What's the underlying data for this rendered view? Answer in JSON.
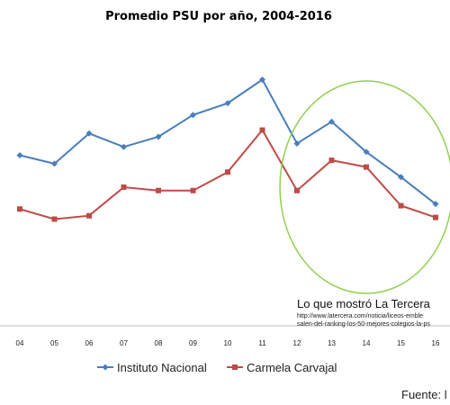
{
  "chart_data": {
    "type": "line",
    "title": "Promedio PSU por año, 2004-2016",
    "categories": [
      "04",
      "05",
      "06",
      "07",
      "08",
      "09",
      "10",
      "11",
      "12",
      "13",
      "14",
      "15",
      "16"
    ],
    "series": [
      {
        "name": "Instituto Nacional",
        "color": "#4a7ebb",
        "marker": "diamond",
        "values": [
          659,
          654,
          672,
          664,
          670,
          683,
          690,
          704,
          666,
          679,
          661,
          646,
          630
        ]
      },
      {
        "name": "Carmela Carvajal",
        "color": "#be4b48",
        "marker": "square",
        "values": [
          627,
          621,
          623,
          640,
          638,
          638,
          649,
          674,
          638,
          656,
          652,
          629,
          622
        ]
      }
    ],
    "ylim": [
      580,
      730
    ],
    "grid": false,
    "legend_position": "bottom"
  },
  "annotation": {
    "caption": "Lo que mostró La Tercera",
    "url_line1": "http://www.latercera.com/noticia/liceos-emble",
    "url_line2": "salen-del-ranking-los-50-mejores-colegios-la-ps",
    "circle_color": "#92d050"
  },
  "footer": {
    "source": "Fuente: l"
  }
}
